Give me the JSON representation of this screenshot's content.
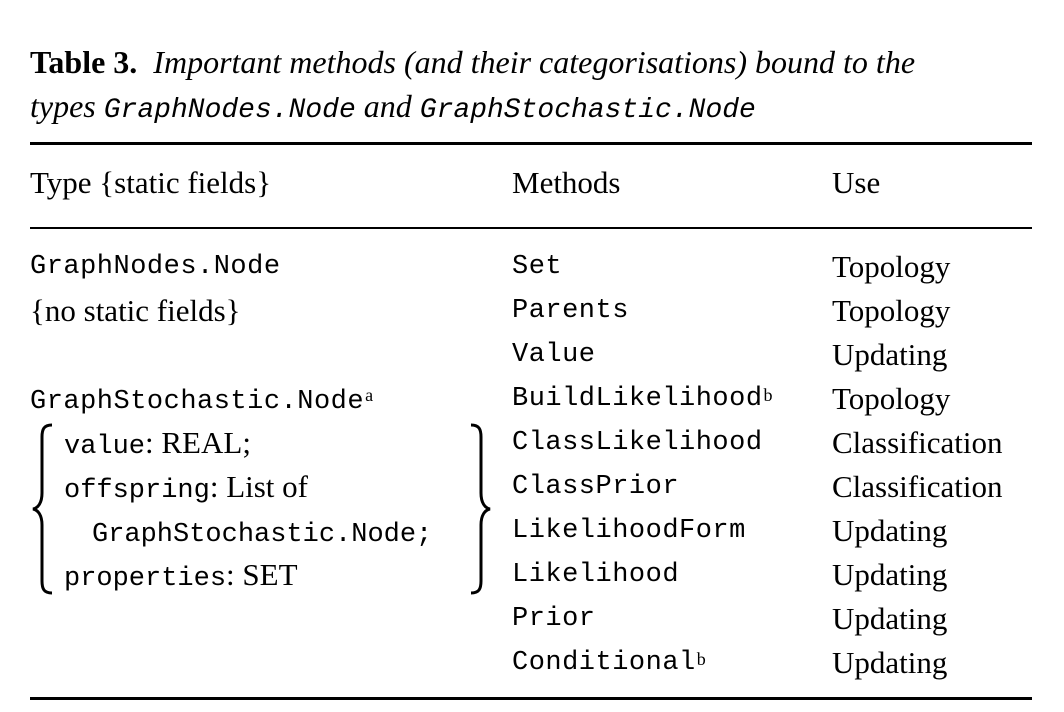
{
  "caption": {
    "label": "Table 3.",
    "text_line1": "Important methods (and their categorisations) bound to the",
    "text_line2_pre": "types",
    "type1": "GraphNodes.Node",
    "text_line2_mid": "and",
    "type2": "GraphStochastic.Node"
  },
  "headers": {
    "col1": "Type {static fields}",
    "col2": "Methods",
    "col3": "Use"
  },
  "types": {
    "node1_name": "GraphNodes.Node",
    "node1_fields": "{no static fields}",
    "node2_name": "GraphStochastic.Node",
    "node2_sup": "a",
    "field1_name": "value",
    "field1_type": ": REAL;",
    "field2_name": "offspring",
    "field2_type": ": List of",
    "field2_cont": "GraphStochastic.Node;",
    "field3_name": "properties",
    "field3_type": ": SET"
  },
  "rows": [
    {
      "method": "Set",
      "sup": "",
      "use": "Topology"
    },
    {
      "method": "Parents",
      "sup": "",
      "use": "Topology"
    },
    {
      "method": "Value",
      "sup": "",
      "use": "Updating"
    },
    {
      "method": "BuildLikelihood",
      "sup": "b",
      "use": "Topology"
    },
    {
      "method": "ClassLikelihood",
      "sup": "",
      "use": "Classification"
    },
    {
      "method": "ClassPrior",
      "sup": "",
      "use": "Classification"
    },
    {
      "method": "LikelihoodForm",
      "sup": "",
      "use": "Updating"
    },
    {
      "method": "Likelihood",
      "sup": "",
      "use": "Updating"
    },
    {
      "method": "Prior",
      "sup": "",
      "use": "Updating"
    },
    {
      "method": "Conditional",
      "sup": "b",
      "use": "Updating"
    }
  ]
}
